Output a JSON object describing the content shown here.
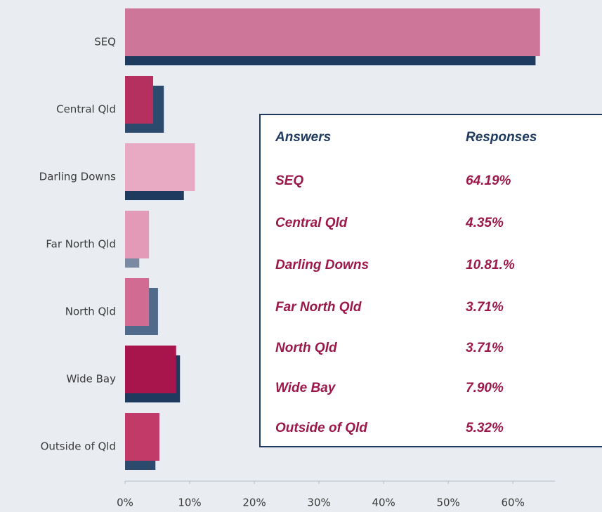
{
  "chart_data": {
    "type": "bar",
    "orientation": "horizontal",
    "categories": [
      "SEQ",
      "Central Qld",
      "Darling Downs",
      "Far North Qld",
      "North Qld",
      "Wide Bay",
      "Outside of Qld"
    ],
    "series": [
      {
        "colors": [
          "#1e3a5f",
          "#2c4a6e",
          "#1e3a5f",
          "#7a8aa2",
          "#4f6a8a",
          "#1e3a5f",
          "#2c4a6e"
        ],
        "values": [
          63.5,
          6.0,
          9.1,
          2.2,
          5.1,
          8.5,
          4.7
        ]
      },
      {
        "colors": [
          "#cd7699",
          "#b5305f",
          "#e8aac2",
          "#e29ab7",
          "#d16b91",
          "#a8154c",
          "#c23a68"
        ],
        "values": [
          64.19,
          4.35,
          10.81,
          3.71,
          3.71,
          7.9,
          5.32
        ]
      }
    ],
    "xlim": [
      0,
      66.5
    ],
    "xticks": [
      {
        "value": 0,
        "label": "0%"
      },
      {
        "value": 10,
        "label": "10%"
      },
      {
        "value": 20,
        "label": "20%"
      },
      {
        "value": 30,
        "label": "30%"
      },
      {
        "value": 40,
        "label": "40%"
      },
      {
        "value": 50,
        "label": "50%"
      },
      {
        "value": 60,
        "label": "60%"
      }
    ]
  },
  "table": {
    "header": [
      "Answers",
      "Responses"
    ],
    "rows": [
      [
        "SEQ",
        "64.19%"
      ],
      [
        "Central Qld",
        "4.35%"
      ],
      [
        "Darling Downs",
        "10.81.%"
      ],
      [
        "Far North Qld",
        "3.71%"
      ],
      [
        "North Qld",
        "3.71%"
      ],
      [
        "Wide Bay",
        "7.90%"
      ],
      [
        "Outside of Qld",
        "5.32%"
      ]
    ]
  }
}
